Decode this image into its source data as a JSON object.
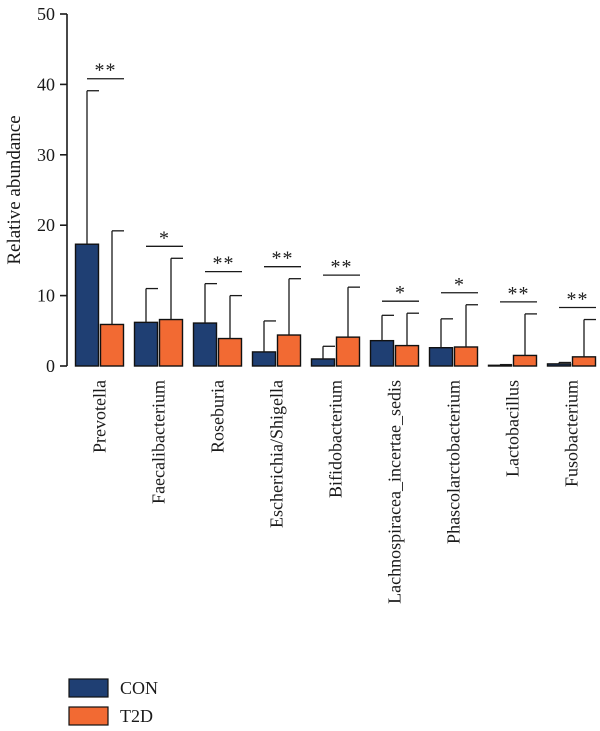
{
  "chart_data": {
    "type": "bar",
    "title": "",
    "xlabel": "",
    "ylabel": "Relative abundance",
    "ylim": [
      0,
      50
    ],
    "yticks": [
      0,
      10,
      20,
      30,
      40,
      50
    ],
    "grid": false,
    "legend_position": "bottom-left",
    "categories": [
      "Prevotella",
      "Faecalibacterium",
      "Roseburia",
      "Escherichia/Shigella",
      "Bifidobacterium",
      "Lachnospiracea_incertae_sedis",
      "Phascolarctobacterium",
      "Lactobacillus",
      "Fusobacterium"
    ],
    "series": [
      {
        "name": "CON",
        "color": "#1f3f73",
        "values": [
          17.3,
          6.2,
          6.1,
          2.0,
          1.0,
          3.6,
          2.6,
          0.1,
          0.3
        ],
        "error_upper": [
          39.1,
          11.0,
          11.7,
          6.4,
          2.8,
          7.2,
          6.7,
          0.2,
          0.5
        ]
      },
      {
        "name": "T2D",
        "color": "#f26a33",
        "values": [
          5.9,
          6.6,
          3.9,
          4.4,
          4.1,
          2.9,
          2.7,
          1.5,
          1.3
        ],
        "error_upper": [
          19.2,
          15.3,
          10.0,
          12.4,
          11.2,
          7.5,
          8.7,
          7.4,
          6.6
        ]
      }
    ],
    "significance": [
      "**",
      "*",
      "**",
      "**",
      "**",
      "*",
      "*",
      "**",
      "**"
    ]
  }
}
